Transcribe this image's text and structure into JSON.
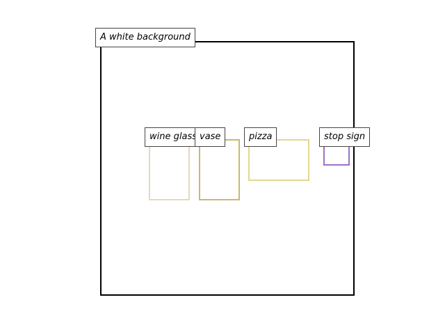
{
  "scene": {
    "caption": "A white background",
    "frame_color": "#000000"
  },
  "objects": [
    {
      "label": "wine glass",
      "color": "#e6d9b8"
    },
    {
      "label": "vase",
      "color": "#c9b870"
    },
    {
      "label": "pizza",
      "color": "#e2d88e"
    },
    {
      "label": "stop sign",
      "color": "#9b72c8"
    }
  ]
}
